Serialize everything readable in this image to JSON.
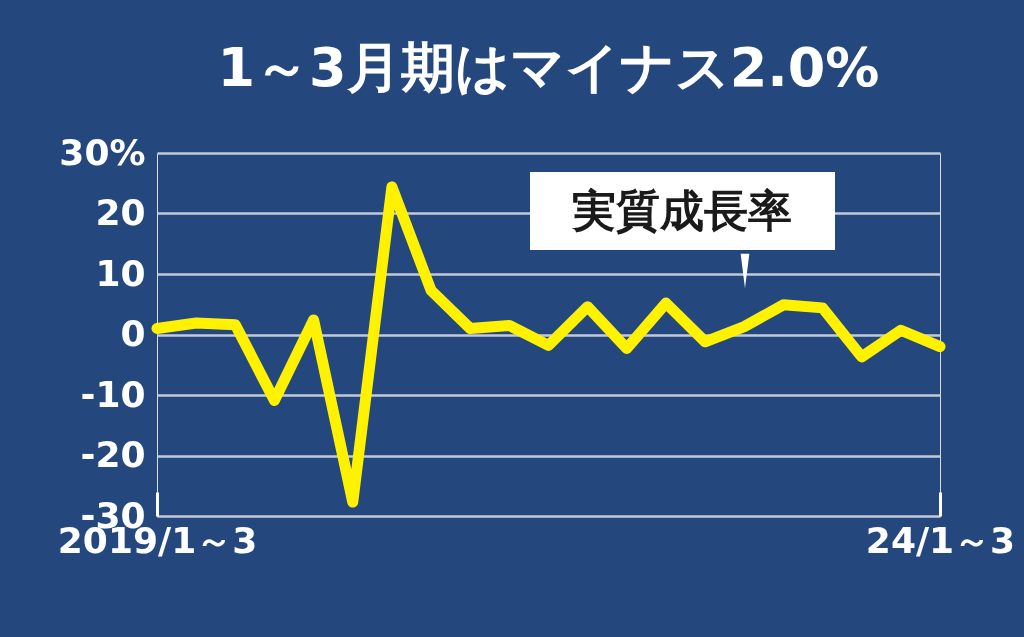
{
  "chart_data": {
    "type": "line",
    "title": "1～3月期はマイナス2.0%",
    "categories": [
      "2019/1～3",
      null,
      null,
      null,
      null,
      null,
      null,
      null,
      null,
      null,
      null,
      null,
      null,
      null,
      null,
      null,
      null,
      null,
      null,
      null,
      "24/1～3"
    ],
    "values": [
      1.0,
      1.9,
      1.6,
      -10.9,
      2.4,
      -27.7,
      24.4,
      7.3,
      1.0,
      1.5,
      -1.8,
      4.6,
      -2.3,
      5.2,
      -1.2,
      1.3,
      4.9,
      4.4,
      -3.7,
      0.7,
      -2.0
    ],
    "color": "#fff200",
    "ylim": [
      -30,
      30
    ],
    "yticks": [
      -30,
      -20,
      -10,
      0,
      10,
      20,
      {
        "value": 30,
        "label": "30%"
      }
    ],
    "grid": true,
    "annotations": [
      "実質成長率"
    ]
  }
}
